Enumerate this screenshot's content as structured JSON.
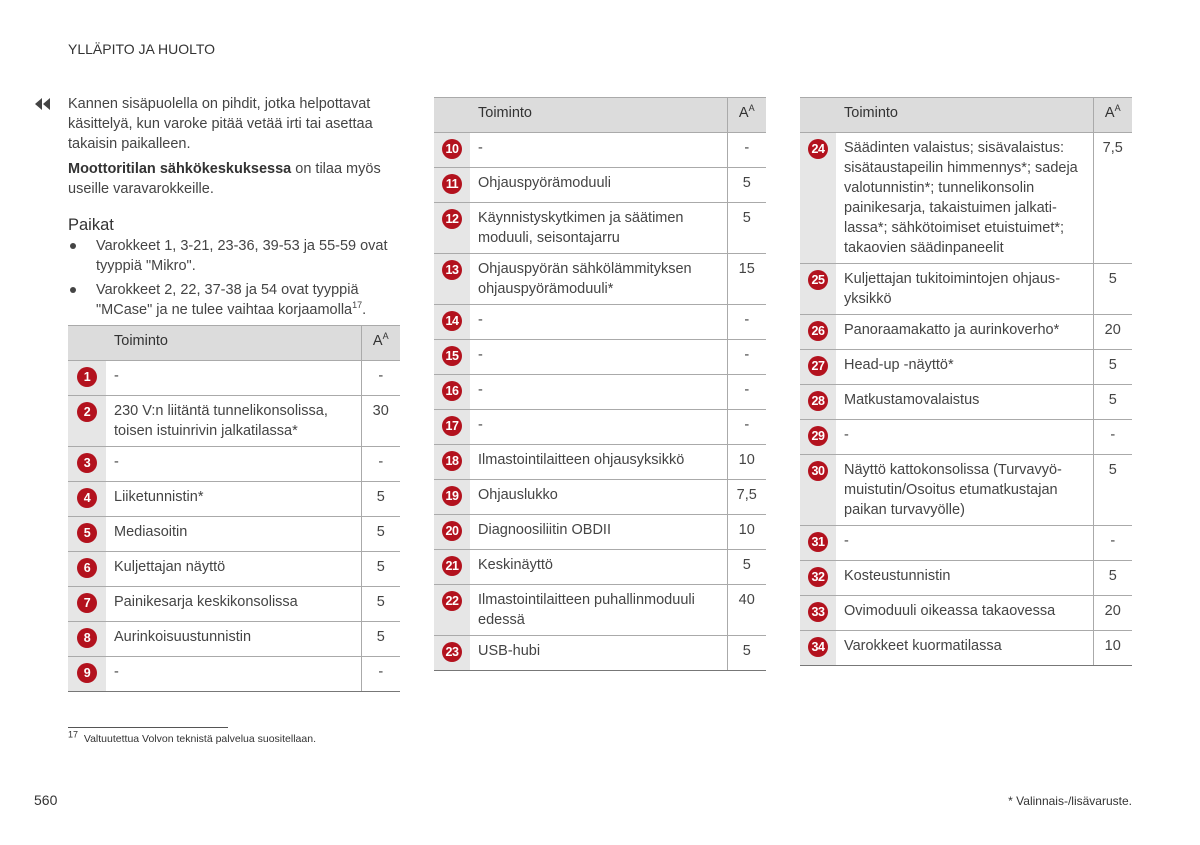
{
  "header": {
    "title": "YLLÄPITO JA HUOLTO"
  },
  "intro": {
    "paragraph": "Kannen sisäpuolella on pihdit, jotka helpottavat käsittelyä, kun varoke pitää vetää irti tai asettaa takaisin paikalleen.",
    "spare_bold": "Moottoritilan sähkökeskuksessa",
    "spare_rest": " on tilaa myös useille varavarokkeille."
  },
  "locations": {
    "heading": "Paikat",
    "bullets": [
      {
        "text": "Varokkeet 1, 3-21, 23-36, 39-53 ja 55-59 ovat tyyppiä \"Mikro\"."
      },
      {
        "text": "Varokkeet 2, 22, 37-38 ja 54 ovat tyyppiä \"MCase\" ja ne tulee vaihtaa korjaamolla",
        "sup": "17",
        "end": "."
      }
    ]
  },
  "tables": [
    {
      "header": {
        "function": "Toiminto",
        "amp": "A",
        "amp_sup": "A"
      },
      "rows": [
        {
          "no": 1,
          "function": "-",
          "amps": "-"
        },
        {
          "no": 2,
          "function": "230 V:n liitäntä tunnelikonsolissa, toisen istuinrivin jalkatilassa*",
          "amps": 30
        },
        {
          "no": 3,
          "function": "-",
          "amps": "-"
        },
        {
          "no": 4,
          "function": "Liiketunnistin*",
          "amps": 5
        },
        {
          "no": 5,
          "function": "Mediasoitin",
          "amps": 5
        },
        {
          "no": 6,
          "function": "Kuljettajan näyttö",
          "amps": 5
        },
        {
          "no": 7,
          "function": "Painikesarja keskikonsolissa",
          "amps": 5
        },
        {
          "no": 8,
          "function": "Aurinkoisuustunnistin",
          "amps": 5
        },
        {
          "no": 9,
          "function": "-",
          "amps": "-"
        }
      ]
    },
    {
      "header": {
        "function": "Toiminto",
        "amp": "A",
        "amp_sup": "A"
      },
      "rows": [
        {
          "no": 10,
          "function": "-",
          "amps": "-"
        },
        {
          "no": 11,
          "function": "Ohjauspyörämoduuli",
          "amps": 5
        },
        {
          "no": 12,
          "function": "Käynnistyskytkimen ja säätimen moduuli, seisontajarru",
          "amps": 5
        },
        {
          "no": 13,
          "function": "Ohjauspyörän sähkölämmityksen ohjauspyörämoduuli*",
          "amps": 15
        },
        {
          "no": 14,
          "function": "-",
          "amps": "-"
        },
        {
          "no": 15,
          "function": "-",
          "amps": "-"
        },
        {
          "no": 16,
          "function": "-",
          "amps": "-"
        },
        {
          "no": 17,
          "function": "-",
          "amps": "-"
        },
        {
          "no": 18,
          "function": "Ilmastointilaitteen ohjausyksikkö",
          "amps": 10
        },
        {
          "no": 19,
          "function": "Ohjauslukko",
          "amps": "7,5"
        },
        {
          "no": 20,
          "function": "Diagnoosiliitin OBDII",
          "amps": 10
        },
        {
          "no": 21,
          "function": "Keskinäyttö",
          "amps": 5
        },
        {
          "no": 22,
          "function": "Ilmastointilaitteen puhallinmoduuli edessä",
          "amps": 40
        },
        {
          "no": 23,
          "function": "USB-hubi",
          "amps": 5
        }
      ]
    },
    {
      "header": {
        "function": "Toiminto",
        "amp": "A",
        "amp_sup": "A"
      },
      "rows": [
        {
          "no": 24,
          "function": "Säädinten valaistus; sisävalaistus: sisätaustapeilin himmennys*; sade­ja valotunnistin*; tunnelikonsolin painikesarja, takaistuimen jalkati­lassa*; sähkötoimiset etuistuimet*; takaovien säädinpaneelit",
          "amps": "7,5"
        },
        {
          "no": 25,
          "function": "Kuljettajan tukitoimintojen ohjaus­yksikkö",
          "amps": 5
        },
        {
          "no": 26,
          "function": "Panoraamakatto ja aurinkoverho*",
          "amps": 20
        },
        {
          "no": 27,
          "function": "Head-up -näyttö*",
          "amps": 5
        },
        {
          "no": 28,
          "function": "Matkustamovalaistus",
          "amps": 5
        },
        {
          "no": 29,
          "function": "-",
          "amps": "-"
        },
        {
          "no": 30,
          "function": "Näyttö kattokonsolissa (Turvavyö­muistutin/Osoitus etumatkustajan paikan turvavyölle)",
          "amps": 5
        },
        {
          "no": 31,
          "function": "-",
          "amps": "-"
        },
        {
          "no": 32,
          "function": "Kosteustunnistin",
          "amps": 5
        },
        {
          "no": 33,
          "function": "Ovimoduuli oikeassa takaovessa",
          "amps": 20
        },
        {
          "no": 34,
          "function": "Varokkeet kuormatilassa",
          "amps": 10
        }
      ]
    }
  ],
  "footnote": {
    "number": "17",
    "text": "Valtuutettua Volvon teknistä palvelua suositellaan."
  },
  "footer": {
    "page": "560",
    "note": "* Valinnais-/lisävaruste."
  }
}
